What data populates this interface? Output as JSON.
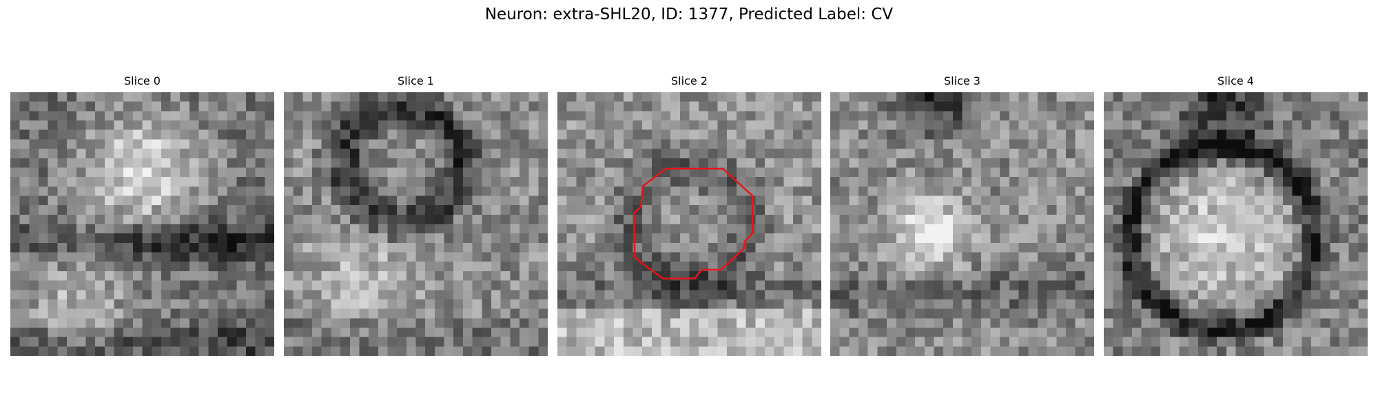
{
  "title": "Neuron: extra-SHL20, ID: 1377, Predicted Label: CV",
  "panels": [
    {
      "title": "Slice 0"
    },
    {
      "title": "Slice 1"
    },
    {
      "title": "Slice 2"
    },
    {
      "title": "Slice 3"
    },
    {
      "title": "Slice 4"
    }
  ]
}
